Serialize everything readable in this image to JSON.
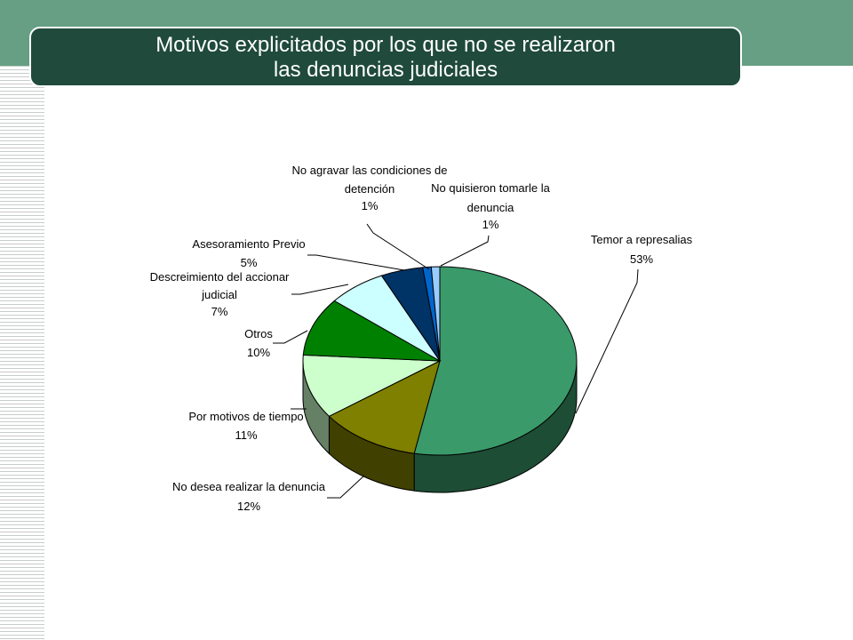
{
  "title": {
    "line1": "Motivos explicitados por los que no se realizaron",
    "line2": "las denuncias judiciales"
  },
  "colors": {
    "header_band": "#669f83",
    "title_box": "#1f4a3c"
  },
  "chart_data": {
    "type": "pie",
    "three_d": true,
    "slices": [
      {
        "label": [
          "Temor a represalias"
        ],
        "pct_text": "53%",
        "value": 53,
        "color": "#3a9a6a"
      },
      {
        "label": [
          "No desea realizar la denuncia"
        ],
        "pct_text": "12%",
        "value": 12,
        "color": "#7f7f00"
      },
      {
        "label": [
          "Por motivos de tiempo"
        ],
        "pct_text": "11%",
        "value": 11,
        "color": "#ccffcc"
      },
      {
        "label": [
          "Otros"
        ],
        "pct_text": "10%",
        "value": 10,
        "color": "#008000"
      },
      {
        "label": [
          "Descreimiento del accionar",
          "judicial"
        ],
        "pct_text": "7%",
        "value": 7,
        "color": "#ccffff"
      },
      {
        "label": [
          "Asesoramiento Previo"
        ],
        "pct_text": "5%",
        "value": 5,
        "color": "#003366"
      },
      {
        "label": [
          "No agravar las condiciones de",
          "detención"
        ],
        "pct_text": "1%",
        "value": 1,
        "color": "#0066cc"
      },
      {
        "label": [
          "No quisieron tomarle la",
          "denuncia"
        ],
        "pct_text": "1%",
        "value": 1,
        "color": "#99ccff"
      }
    ]
  }
}
